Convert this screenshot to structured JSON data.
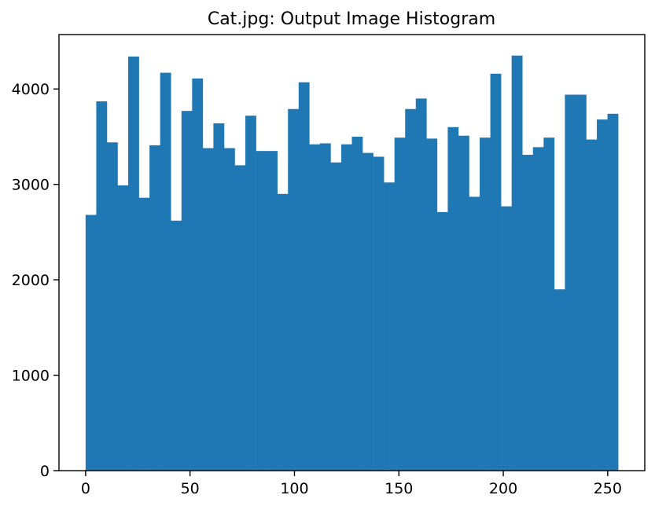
{
  "chart_data": {
    "type": "bar",
    "title": "Cat.jpg: Output Image Histogram",
    "xlabel": "",
    "ylabel": "",
    "bar_color": "#1f77b4",
    "xlim": [
      -12.75,
      267.75
    ],
    "ylim": [
      0,
      4570
    ],
    "xticks": [
      0,
      50,
      100,
      150,
      200,
      250
    ],
    "yticks": [
      0,
      1000,
      2000,
      3000,
      4000
    ],
    "bin_start": 0,
    "bin_width": 5.1,
    "values": [
      2680,
      3870,
      3440,
      2990,
      4340,
      2860,
      3410,
      4170,
      2620,
      3770,
      4110,
      3380,
      3640,
      3380,
      3200,
      3720,
      3350,
      3350,
      2900,
      3790,
      4070,
      3420,
      3430,
      3230,
      3420,
      3500,
      3330,
      3290,
      3020,
      3490,
      3790,
      3900,
      3480,
      2710,
      3600,
      3510,
      2870,
      3490,
      4160,
      2770,
      4350,
      3310,
      3390,
      3490,
      1900,
      3940,
      3940,
      3470,
      3680,
      3740
    ]
  }
}
